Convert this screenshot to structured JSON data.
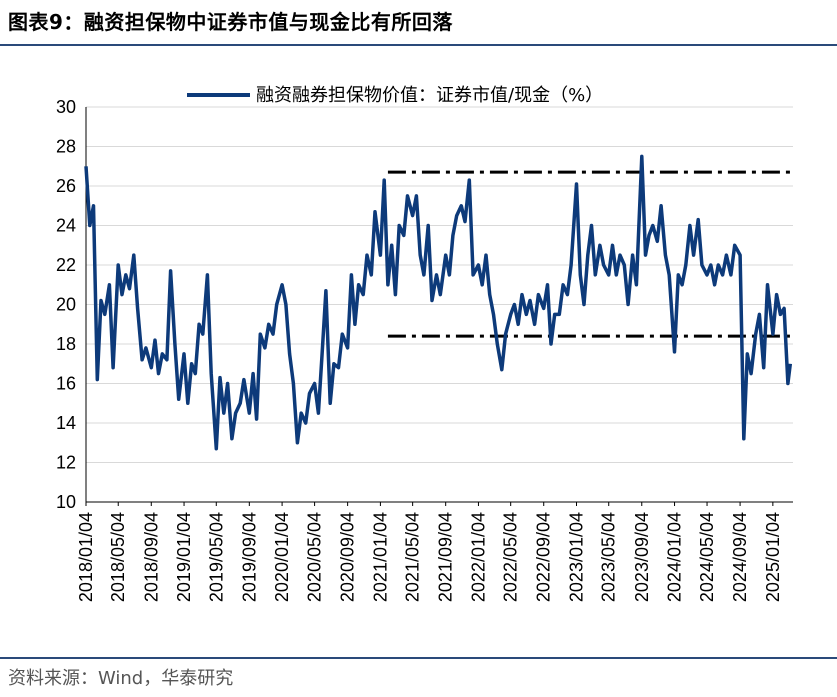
{
  "header": {
    "figure_label": "图表9：",
    "figure_title": "融资担保物中证券市值与现金比有所回落"
  },
  "footer": {
    "source": "资料来源：Wind，华泰研究"
  },
  "colors": {
    "series": "#0d3a7a",
    "reference_lines": "#000000",
    "rules": "#2a4a7a",
    "grid": "#d9d9d9"
  },
  "chart_data": {
    "type": "line",
    "title": "",
    "xlabel": "",
    "ylabel": "",
    "ylim": [
      10,
      30
    ],
    "yticks": [
      10,
      12,
      14,
      16,
      18,
      20,
      22,
      24,
      26,
      28,
      30
    ],
    "grid": "horizontal",
    "legend": "top",
    "x_start": "2018/01/04",
    "x_end": "2025/03/20",
    "xtick_labels": [
      "2018/01/04",
      "2018/05/04",
      "2018/09/04",
      "2019/01/04",
      "2019/05/04",
      "2019/09/04",
      "2020/01/04",
      "2020/05/04",
      "2020/09/04",
      "2021/01/04",
      "2021/05/04",
      "2021/09/04",
      "2022/01/04",
      "2022/05/04",
      "2022/09/04",
      "2023/01/04",
      "2023/05/04",
      "2023/09/04",
      "2024/01/04",
      "2024/05/04",
      "2024/09/04",
      "2025/01/04"
    ],
    "reference_lines": [
      {
        "y": 26.7,
        "x_from": "2021/02/01",
        "x_to": "2025/03/20",
        "style": "dash-dot"
      },
      {
        "y": 18.4,
        "x_from": "2021/02/01",
        "x_to": "2025/03/10",
        "style": "dash-dot"
      }
    ],
    "series": [
      {
        "name": "融资融券担保物价值：证券市值/现金（%）",
        "points": [
          [
            "2018/01/04",
            27.0
          ],
          [
            "2018/01/18",
            24.0
          ],
          [
            "2018/02/01",
            25.0
          ],
          [
            "2018/02/15",
            16.2
          ],
          [
            "2018/03/01",
            20.2
          ],
          [
            "2018/03/15",
            19.5
          ],
          [
            "2018/04/01",
            21.0
          ],
          [
            "2018/04/15",
            16.8
          ],
          [
            "2018/05/04",
            22.0
          ],
          [
            "2018/05/18",
            20.5
          ],
          [
            "2018/06/01",
            21.5
          ],
          [
            "2018/06/15",
            20.8
          ],
          [
            "2018/07/01",
            22.5
          ],
          [
            "2018/07/15",
            19.8
          ],
          [
            "2018/08/01",
            17.2
          ],
          [
            "2018/08/15",
            17.8
          ],
          [
            "2018/09/04",
            16.8
          ],
          [
            "2018/09/18",
            18.2
          ],
          [
            "2018/10/01",
            16.5
          ],
          [
            "2018/10/15",
            17.5
          ],
          [
            "2018/11/01",
            17.2
          ],
          [
            "2018/11/15",
            21.7
          ],
          [
            "2018/12/01",
            18.0
          ],
          [
            "2018/12/15",
            15.2
          ],
          [
            "2019/01/04",
            17.5
          ],
          [
            "2019/01/18",
            15.0
          ],
          [
            "2019/02/01",
            17.0
          ],
          [
            "2019/02/15",
            16.5
          ],
          [
            "2019/03/01",
            19.0
          ],
          [
            "2019/03/15",
            18.5
          ],
          [
            "2019/04/01",
            21.5
          ],
          [
            "2019/04/15",
            16.5
          ],
          [
            "2019/05/04",
            12.7
          ],
          [
            "2019/05/18",
            16.3
          ],
          [
            "2019/06/01",
            14.5
          ],
          [
            "2019/06/15",
            16.0
          ],
          [
            "2019/07/01",
            13.2
          ],
          [
            "2019/07/15",
            14.5
          ],
          [
            "2019/08/01",
            15.0
          ],
          [
            "2019/08/15",
            16.2
          ],
          [
            "2019/09/04",
            14.5
          ],
          [
            "2019/09/18",
            16.5
          ],
          [
            "2019/10/01",
            14.2
          ],
          [
            "2019/10/15",
            18.5
          ],
          [
            "2019/11/01",
            17.8
          ],
          [
            "2019/11/15",
            19.0
          ],
          [
            "2019/12/01",
            18.5
          ],
          [
            "2019/12/15",
            20.0
          ],
          [
            "2020/01/04",
            21.0
          ],
          [
            "2020/01/18",
            20.0
          ],
          [
            "2020/02/01",
            17.5
          ],
          [
            "2020/02/15",
            16.0
          ],
          [
            "2020/03/01",
            13.0
          ],
          [
            "2020/03/15",
            14.5
          ],
          [
            "2020/04/01",
            14.0
          ],
          [
            "2020/04/15",
            15.5
          ],
          [
            "2020/05/04",
            16.0
          ],
          [
            "2020/05/18",
            14.5
          ],
          [
            "2020/06/01",
            17.5
          ],
          [
            "2020/06/15",
            20.7
          ],
          [
            "2020/07/01",
            15.0
          ],
          [
            "2020/07/15",
            17.0
          ],
          [
            "2020/08/01",
            16.8
          ],
          [
            "2020/08/15",
            18.5
          ],
          [
            "2020/09/04",
            17.8
          ],
          [
            "2020/09/18",
            21.5
          ],
          [
            "2020/10/01",
            19.0
          ],
          [
            "2020/10/15",
            21.0
          ],
          [
            "2020/11/01",
            20.5
          ],
          [
            "2020/11/15",
            22.5
          ],
          [
            "2020/12/01",
            21.5
          ],
          [
            "2020/12/15",
            24.7
          ],
          [
            "2021/01/04",
            22.5
          ],
          [
            "2021/01/18",
            26.3
          ],
          [
            "2021/02/01",
            21.0
          ],
          [
            "2021/02/15",
            23.0
          ],
          [
            "2021/03/01",
            20.5
          ],
          [
            "2021/03/15",
            24.0
          ],
          [
            "2021/04/01",
            23.5
          ],
          [
            "2021/04/15",
            25.5
          ],
          [
            "2021/05/04",
            24.5
          ],
          [
            "2021/05/18",
            25.5
          ],
          [
            "2021/06/01",
            22.5
          ],
          [
            "2021/06/15",
            21.5
          ],
          [
            "2021/07/01",
            24.0
          ],
          [
            "2021/07/15",
            20.2
          ],
          [
            "2021/08/01",
            21.5
          ],
          [
            "2021/08/15",
            20.5
          ],
          [
            "2021/09/04",
            22.5
          ],
          [
            "2021/09/18",
            21.5
          ],
          [
            "2021/10/01",
            23.5
          ],
          [
            "2021/10/15",
            24.5
          ],
          [
            "2021/11/01",
            25.0
          ],
          [
            "2021/11/15",
            24.2
          ],
          [
            "2021/12/01",
            26.3
          ],
          [
            "2021/12/15",
            21.5
          ],
          [
            "2022/01/04",
            22.0
          ],
          [
            "2022/01/18",
            21.0
          ],
          [
            "2022/02/01",
            22.5
          ],
          [
            "2022/02/15",
            20.5
          ],
          [
            "2022/03/01",
            19.5
          ],
          [
            "2022/03/15",
            18.0
          ],
          [
            "2022/04/01",
            16.7
          ],
          [
            "2022/04/15",
            18.5
          ],
          [
            "2022/05/04",
            19.5
          ],
          [
            "2022/05/18",
            20.0
          ],
          [
            "2022/06/01",
            19.0
          ],
          [
            "2022/06/15",
            20.5
          ],
          [
            "2022/07/01",
            19.5
          ],
          [
            "2022/07/15",
            20.2
          ],
          [
            "2022/08/01",
            19.0
          ],
          [
            "2022/08/15",
            20.5
          ],
          [
            "2022/09/04",
            19.8
          ],
          [
            "2022/09/18",
            21.0
          ],
          [
            "2022/10/01",
            18.0
          ],
          [
            "2022/10/15",
            19.5
          ],
          [
            "2022/11/01",
            19.5
          ],
          [
            "2022/11/15",
            21.0
          ],
          [
            "2022/12/01",
            20.5
          ],
          [
            "2022/12/15",
            22.0
          ],
          [
            "2023/01/04",
            26.1
          ],
          [
            "2023/01/18",
            21.5
          ],
          [
            "2023/02/01",
            20.0
          ],
          [
            "2023/02/15",
            22.5
          ],
          [
            "2023/03/01",
            24.0
          ],
          [
            "2023/03/15",
            21.5
          ],
          [
            "2023/04/01",
            23.0
          ],
          [
            "2023/04/15",
            22.0
          ],
          [
            "2023/05/04",
            21.5
          ],
          [
            "2023/05/18",
            23.0
          ],
          [
            "2023/06/01",
            21.5
          ],
          [
            "2023/06/15",
            22.5
          ],
          [
            "2023/07/01",
            22.0
          ],
          [
            "2023/07/15",
            20.0
          ],
          [
            "2023/08/01",
            22.5
          ],
          [
            "2023/08/15",
            21.0
          ],
          [
            "2023/09/04",
            27.5
          ],
          [
            "2023/09/18",
            22.5
          ],
          [
            "2023/10/01",
            23.5
          ],
          [
            "2023/10/15",
            24.0
          ],
          [
            "2023/11/01",
            23.2
          ],
          [
            "2023/11/15",
            25.0
          ],
          [
            "2023/12/01",
            22.5
          ],
          [
            "2023/12/15",
            21.5
          ],
          [
            "2024/01/04",
            17.6
          ],
          [
            "2024/01/18",
            21.5
          ],
          [
            "2024/02/01",
            21.0
          ],
          [
            "2024/02/15",
            22.0
          ],
          [
            "2024/03/01",
            24.0
          ],
          [
            "2024/03/15",
            22.5
          ],
          [
            "2024/04/01",
            24.3
          ],
          [
            "2024/04/15",
            22.0
          ],
          [
            "2024/05/04",
            21.5
          ],
          [
            "2024/05/18",
            22.0
          ],
          [
            "2024/06/01",
            21.0
          ],
          [
            "2024/06/15",
            22.0
          ],
          [
            "2024/07/01",
            21.5
          ],
          [
            "2024/07/15",
            22.5
          ],
          [
            "2024/08/01",
            21.5
          ],
          [
            "2024/08/15",
            23.0
          ],
          [
            "2024/09/04",
            22.5
          ],
          [
            "2024/09/18",
            13.2
          ],
          [
            "2024/10/01",
            17.5
          ],
          [
            "2024/10/15",
            16.5
          ],
          [
            "2024/11/01",
            18.5
          ],
          [
            "2024/11/15",
            19.5
          ],
          [
            "2024/12/01",
            16.8
          ],
          [
            "2024/12/15",
            21.0
          ],
          [
            "2025/01/04",
            18.5
          ],
          [
            "2025/01/18",
            20.5
          ],
          [
            "2025/02/01",
            19.5
          ],
          [
            "2025/02/15",
            19.8
          ],
          [
            "2025/03/01",
            16.0
          ],
          [
            "2025/03/10",
            17.0
          ]
        ]
      }
    ]
  }
}
